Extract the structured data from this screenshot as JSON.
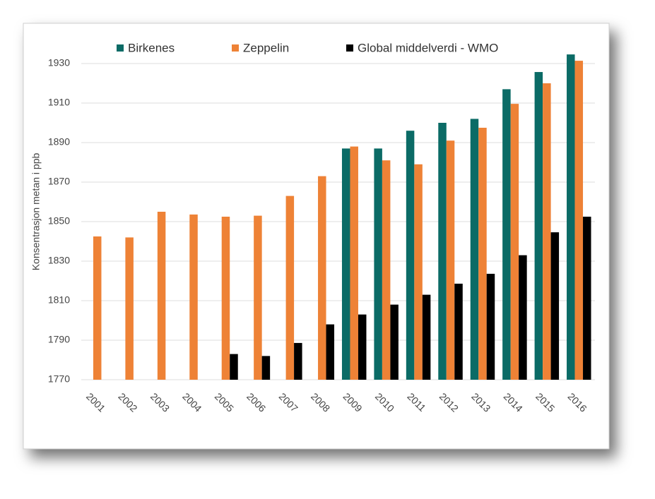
{
  "chart_data": {
    "type": "bar",
    "y_label": "Konsentrasjon metan  i ppb",
    "categories": [
      "2001",
      "2002",
      "2003",
      "2004",
      "2005",
      "2006",
      "2007",
      "2008",
      "2009",
      "2010",
      "2011",
      "2012",
      "2013",
      "2014",
      "2015",
      "2016"
    ],
    "series": [
      {
        "name": "Birkenes",
        "color": "#0b6b66",
        "values": [
          null,
          null,
          null,
          null,
          null,
          null,
          null,
          null,
          1887,
          1887,
          1896,
          1900,
          1902,
          1917,
          1925.7,
          1934.6
        ]
      },
      {
        "name": "Zeppelin",
        "color": "#ee8236",
        "values": [
          1842.5,
          1842,
          1855,
          1853.6,
          1852.5,
          1853,
          1863,
          1873,
          1888,
          1881,
          1879,
          1891,
          1897.5,
          1909.6,
          1920,
          1931.4
        ]
      },
      {
        "name": "Global middelverdi - WMO",
        "color": "#000000",
        "values": [
          null,
          null,
          null,
          null,
          1783,
          1782,
          1788.6,
          1798,
          1803,
          1808,
          1813,
          1818.6,
          1823.6,
          1833,
          1844.6,
          1852.5
        ]
      }
    ],
    "ylim": [
      1770,
      1940
    ],
    "yticks": [
      1770,
      1790,
      1810,
      1830,
      1850,
      1870,
      1890,
      1910,
      1930
    ],
    "grid": true,
    "legend": "top"
  }
}
